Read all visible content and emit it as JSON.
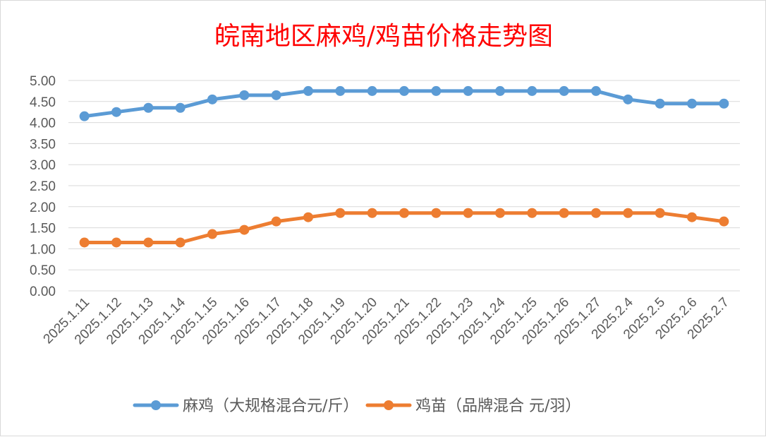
{
  "chart_data": {
    "type": "line",
    "title": "皖南地区麻鸡/鸡苗价格走势图",
    "title_color": "#ff0000",
    "categories": [
      "2025.1.11",
      "2025.1.12",
      "2025.1.13",
      "2025.1.14",
      "2025.1.15",
      "2025.1.16",
      "2025.1.17",
      "2025.1.18",
      "2025.1.19",
      "2025.1.20",
      "2025.1.21",
      "2025.1.22",
      "2025.1.23",
      "2025.1.24",
      "2025.1.25",
      "2025.1.26",
      "2025.1.27",
      "2025.2.4",
      "2025.2.5",
      "2025.2.6",
      "2025.2.7"
    ],
    "series": [
      {
        "name": "麻鸡（大规格混合元/斤）",
        "color": "#5b9bd5",
        "values": [
          4.15,
          4.25,
          4.35,
          4.35,
          4.55,
          4.65,
          4.65,
          4.75,
          4.75,
          4.75,
          4.75,
          4.75,
          4.75,
          4.75,
          4.75,
          4.75,
          4.75,
          4.55,
          4.45,
          4.45,
          4.45
        ]
      },
      {
        "name": "鸡苗（品牌混合 元/羽）",
        "color": "#ed7d31",
        "values": [
          1.15,
          1.15,
          1.15,
          1.15,
          1.35,
          1.45,
          1.65,
          1.75,
          1.85,
          1.85,
          1.85,
          1.85,
          1.85,
          1.85,
          1.85,
          1.85,
          1.85,
          1.85,
          1.85,
          1.75,
          1.65
        ]
      }
    ],
    "ylim": [
      0,
      5
    ],
    "y_ticks": [
      "0.00",
      "0.50",
      "1.00",
      "1.50",
      "2.00",
      "2.50",
      "3.00",
      "3.50",
      "4.00",
      "4.50",
      "5.00"
    ],
    "xlabel": "",
    "ylabel": "",
    "grid": true,
    "legend_position": "bottom"
  }
}
